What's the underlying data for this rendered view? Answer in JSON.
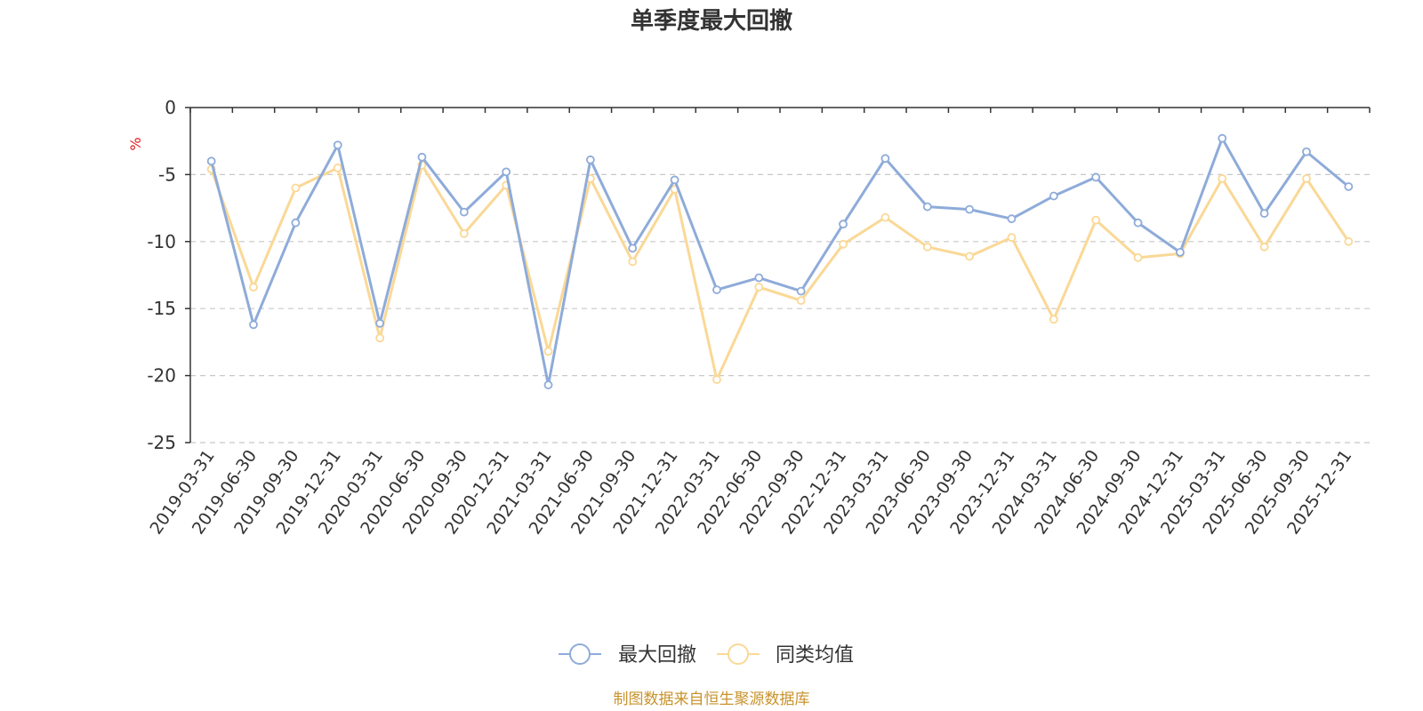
{
  "chart_data": {
    "type": "line",
    "title": "单季度最大回撤",
    "ylabel": "%",
    "xlabel": "",
    "ylim": [
      -25,
      0
    ],
    "yticks": [
      0,
      -5,
      -10,
      -15,
      -20,
      -25
    ],
    "grid": true,
    "legend_position": "bottom",
    "x": [
      "2019-03-31",
      "2019-06-30",
      "2019-09-30",
      "2019-12-31",
      "2020-03-31",
      "2020-06-30",
      "2020-09-30",
      "2020-12-31",
      "2021-03-31",
      "2021-06-30",
      "2021-09-30",
      "2021-12-31",
      "2022-03-31",
      "2022-06-30",
      "2022-09-30",
      "2022-12-31",
      "2023-03-31",
      "2023-06-30",
      "2023-09-30",
      "2023-12-31",
      "2024-03-31",
      "2024-06-30",
      "2024-09-30",
      "2024-12-31",
      "2025-03-31",
      "2025-06-30",
      "2025-09-30",
      "2025-12-31"
    ],
    "series": [
      {
        "name": "最大回撤",
        "color": "#8eabd9",
        "values": [
          -4.0,
          -16.2,
          -8.6,
          -2.8,
          -16.1,
          -3.7,
          -7.8,
          -4.8,
          -20.7,
          -3.9,
          -10.5,
          -5.4,
          -13.6,
          -12.7,
          -13.7,
          -8.7,
          -3.8,
          -7.4,
          -7.6,
          -8.3,
          -6.6,
          -5.2,
          -8.6,
          -10.8,
          -2.3,
          -7.9,
          -3.3,
          -5.9
        ]
      },
      {
        "name": "同类均值",
        "color": "#fad896",
        "values": [
          -4.6,
          -13.4,
          -6.0,
          -4.5,
          -17.2,
          -4.3,
          -9.4,
          -5.8,
          -18.2,
          -5.3,
          -11.5,
          -6.1,
          -20.3,
          -13.4,
          -14.4,
          -10.2,
          -8.2,
          -10.4,
          -11.1,
          -9.7,
          -15.8,
          -8.4,
          -11.2,
          -10.9,
          -5.3,
          -10.4,
          -5.3,
          -10.0
        ]
      }
    ],
    "source_note": "制图数据来自恒生聚源数据库"
  }
}
